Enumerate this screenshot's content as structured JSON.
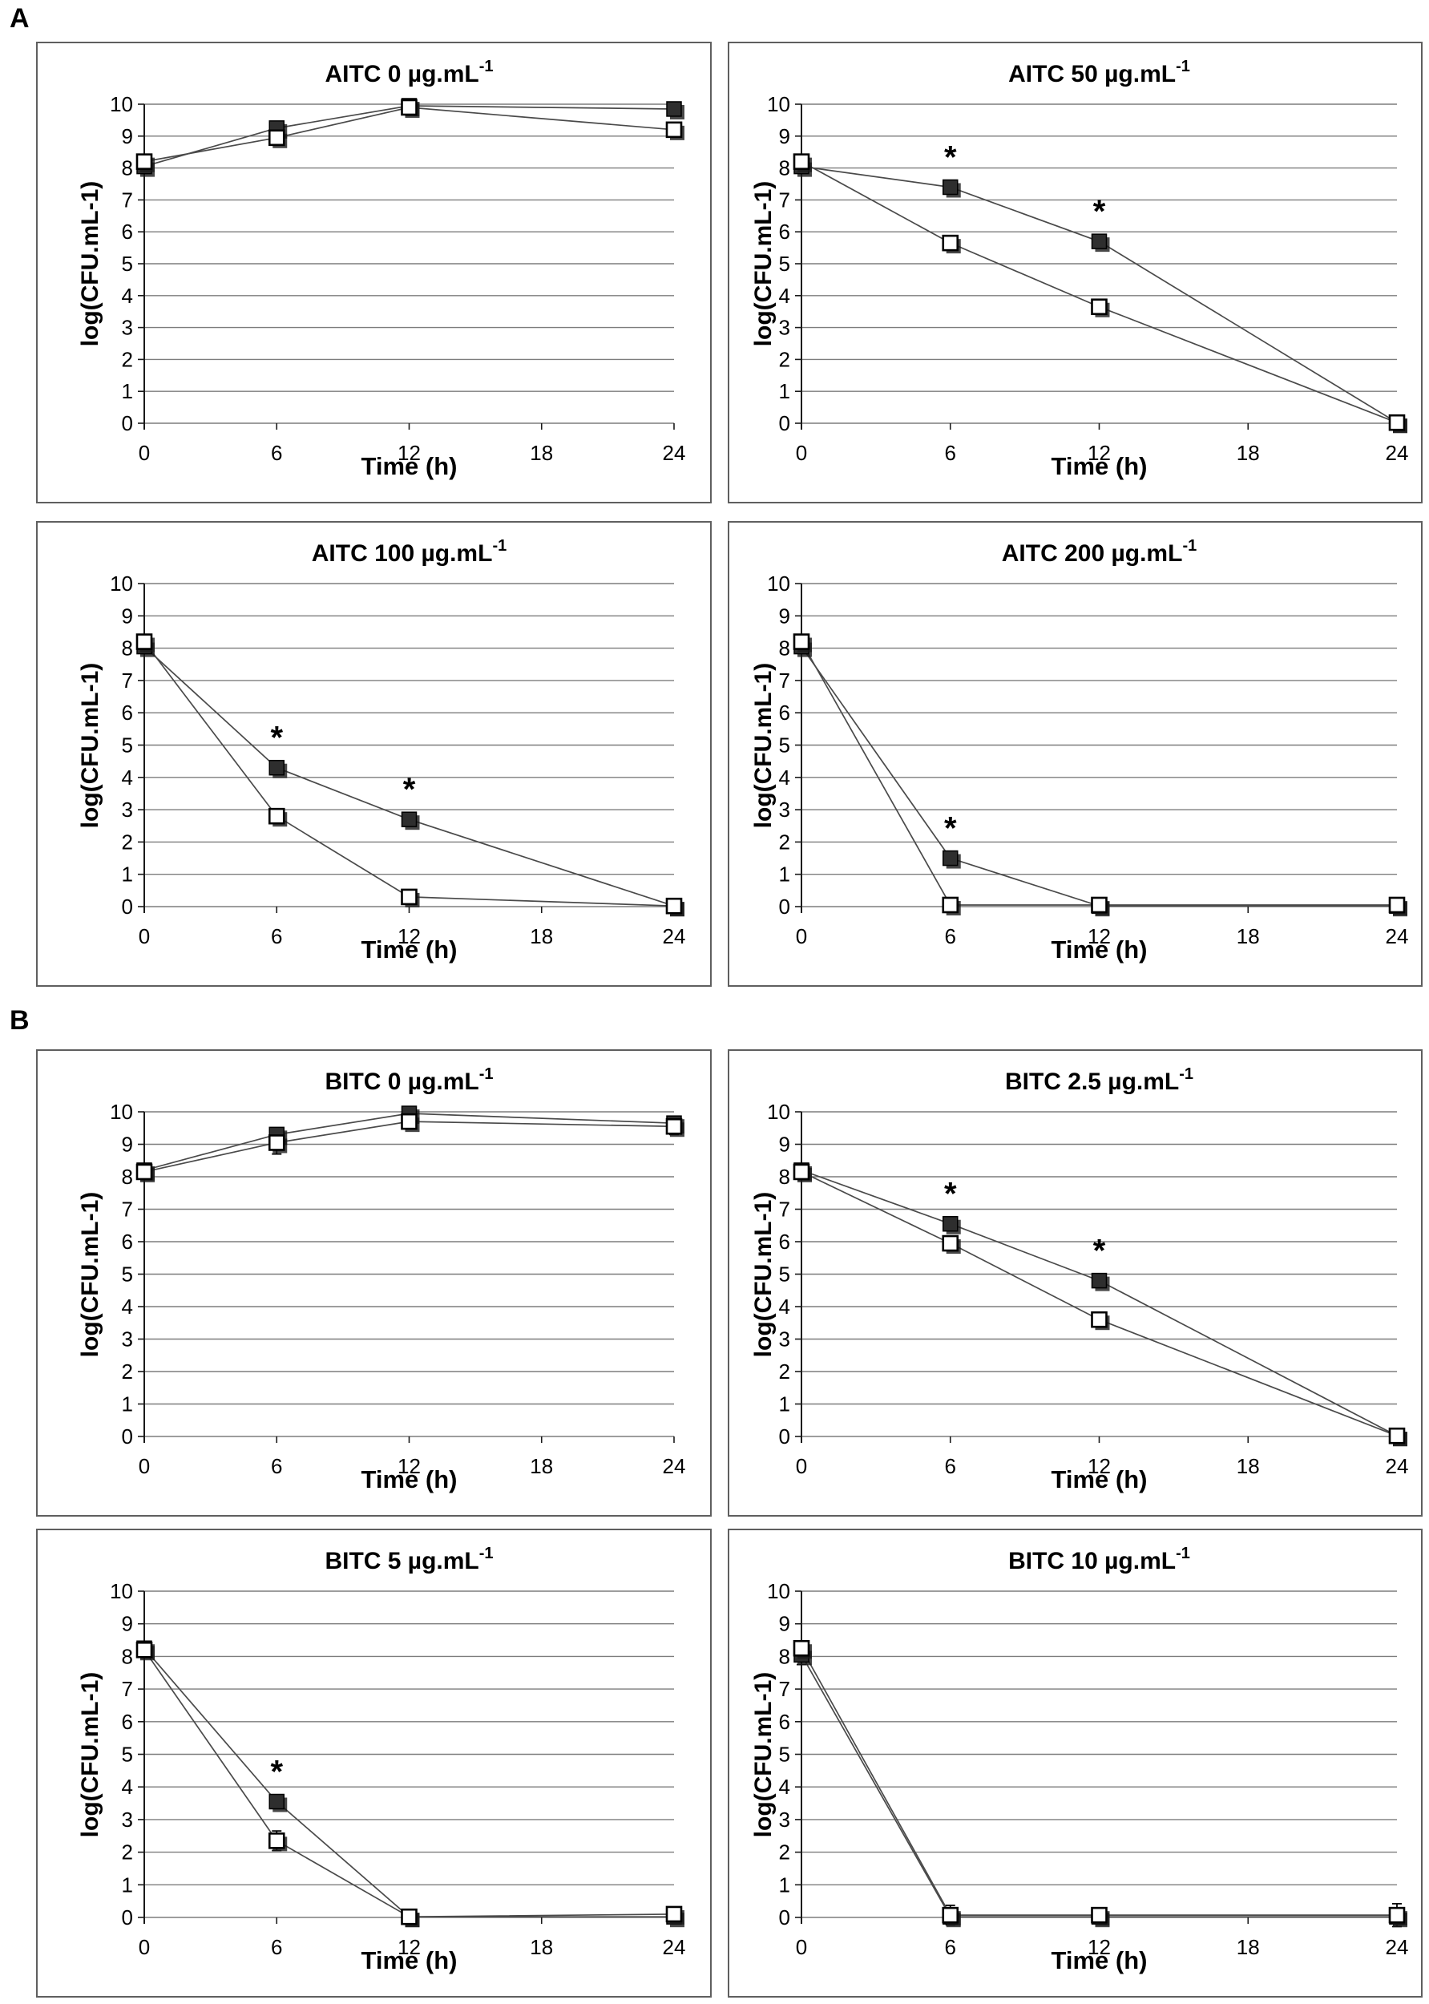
{
  "figure": {
    "panel_a_label": "A",
    "panel_b_label": "B",
    "significance_symbol": "*",
    "colors": {
      "grid": "#7d7d7d",
      "axis": "#1a1a1a",
      "series_line": "#4a4a4a",
      "filled_marker": "#2e2e2e",
      "open_marker_fill": "#ffffff",
      "marker_stroke": "#000000",
      "marker_shadow": "#1a1a1a",
      "box_border": "#5f5f5f"
    }
  },
  "chart_data": [
    {
      "type": "line",
      "panel": "A",
      "title": "AITC 0 µg.mL",
      "title_sup": "-1",
      "xlabel": "Time (h)",
      "ylabel": "log(CFU.mL-1)",
      "x": [
        0,
        6,
        12,
        24
      ],
      "xticks": [
        0,
        6,
        12,
        18,
        24
      ],
      "yticks": [
        0,
        1,
        2,
        3,
        4,
        5,
        6,
        7,
        8,
        9,
        10
      ],
      "xlim": [
        0,
        24
      ],
      "ylim": [
        0,
        10
      ],
      "grid": "horizontal",
      "legend": "none",
      "series": [
        {
          "name": "filled-square",
          "marker": "filled",
          "values": [
            8.05,
            9.25,
            9.95,
            9.85
          ],
          "err": [
            0,
            0,
            0,
            0
          ]
        },
        {
          "name": "open-square",
          "marker": "open",
          "values": [
            8.2,
            8.95,
            9.9,
            9.2
          ],
          "err": [
            0,
            0,
            0,
            0
          ]
        }
      ],
      "asterisk_x": []
    },
    {
      "type": "line",
      "panel": "A",
      "title": "AITC 50 µg.mL",
      "title_sup": "-1",
      "xlabel": "Time (h)",
      "ylabel": "log(CFU.mL-1)",
      "x": [
        0,
        6,
        12,
        24
      ],
      "xticks": [
        0,
        6,
        12,
        18,
        24
      ],
      "yticks": [
        0,
        1,
        2,
        3,
        4,
        5,
        6,
        7,
        8,
        9,
        10
      ],
      "xlim": [
        0,
        24
      ],
      "ylim": [
        0,
        10
      ],
      "grid": "horizontal",
      "legend": "none",
      "series": [
        {
          "name": "filled-square",
          "marker": "filled",
          "values": [
            8.05,
            7.4,
            5.7,
            0.02
          ],
          "err": [
            0,
            0,
            0,
            0
          ]
        },
        {
          "name": "open-square",
          "marker": "open",
          "values": [
            8.2,
            5.65,
            3.65,
            0.02
          ],
          "err": [
            0,
            0,
            0,
            0
          ]
        }
      ],
      "asterisk_x": [
        6,
        12
      ]
    },
    {
      "type": "line",
      "panel": "A",
      "title": "AITC 100 µg.mL",
      "title_sup": "-1",
      "xlabel": "Time (h)",
      "ylabel": "log(CFU.mL-1)",
      "x": [
        0,
        6,
        12,
        24
      ],
      "xticks": [
        0,
        6,
        12,
        18,
        24
      ],
      "yticks": [
        0,
        1,
        2,
        3,
        4,
        5,
        6,
        7,
        8,
        9,
        10
      ],
      "xlim": [
        0,
        24
      ],
      "ylim": [
        0,
        10
      ],
      "grid": "horizontal",
      "legend": "none",
      "series": [
        {
          "name": "filled-square",
          "marker": "filled",
          "values": [
            8.05,
            4.3,
            2.7,
            0.02
          ],
          "err": [
            0,
            0,
            0,
            0
          ]
        },
        {
          "name": "open-square",
          "marker": "open",
          "values": [
            8.2,
            2.8,
            0.3,
            0.02
          ],
          "err": [
            0,
            0,
            0,
            0
          ]
        }
      ],
      "asterisk_x": [
        6,
        12
      ]
    },
    {
      "type": "line",
      "panel": "A",
      "title": "AITC 200 µg.mL",
      "title_sup": "-1",
      "xlabel": "Time (h)",
      "ylabel": "log(CFU.mL-1)",
      "x": [
        0,
        6,
        12,
        24
      ],
      "xticks": [
        0,
        6,
        12,
        18,
        24
      ],
      "yticks": [
        0,
        1,
        2,
        3,
        4,
        5,
        6,
        7,
        8,
        9,
        10
      ],
      "xlim": [
        0,
        24
      ],
      "ylim": [
        0,
        10
      ],
      "grid": "horizontal",
      "legend": "none",
      "series": [
        {
          "name": "filled-square",
          "marker": "filled",
          "values": [
            8.05,
            1.5,
            0.02,
            0.02
          ],
          "err": [
            0,
            0,
            0,
            0
          ]
        },
        {
          "name": "open-square",
          "marker": "open",
          "values": [
            8.2,
            0.05,
            0.05,
            0.05
          ],
          "err": [
            0,
            0,
            0,
            0
          ]
        }
      ],
      "asterisk_x": [
        6
      ]
    },
    {
      "type": "line",
      "panel": "B",
      "title": "BITC 0 µg.mL",
      "title_sup": "-1",
      "xlabel": "Time (h)",
      "ylabel": "log(CFU.mL-1)",
      "x": [
        0,
        6,
        12,
        24
      ],
      "xticks": [
        0,
        6,
        12,
        18,
        24
      ],
      "yticks": [
        0,
        1,
        2,
        3,
        4,
        5,
        6,
        7,
        8,
        9,
        10
      ],
      "xlim": [
        0,
        24
      ],
      "ylim": [
        0,
        10
      ],
      "grid": "horizontal",
      "legend": "none",
      "series": [
        {
          "name": "filled-square",
          "marker": "filled",
          "values": [
            8.2,
            9.3,
            9.95,
            9.65
          ],
          "err": [
            0.15,
            0,
            0.15,
            0.2
          ]
        },
        {
          "name": "open-square",
          "marker": "open",
          "values": [
            8.15,
            9.05,
            9.7,
            9.55
          ],
          "err": [
            0.15,
            0.35,
            0,
            0.25
          ]
        }
      ],
      "asterisk_x": []
    },
    {
      "type": "line",
      "panel": "B",
      "title": "BITC 2.5 µg.mL",
      "title_sup": "-1",
      "xlabel": "Time (h)",
      "ylabel": "log(CFU.mL-1)",
      "x": [
        0,
        6,
        12,
        24
      ],
      "xticks": [
        0,
        6,
        12,
        18,
        24
      ],
      "yticks": [
        0,
        1,
        2,
        3,
        4,
        5,
        6,
        7,
        8,
        9,
        10
      ],
      "xlim": [
        0,
        24
      ],
      "ylim": [
        0,
        10
      ],
      "grid": "horizontal",
      "legend": "none",
      "series": [
        {
          "name": "filled-square",
          "marker": "filled",
          "values": [
            8.2,
            6.55,
            4.8,
            0.02
          ],
          "err": [
            0,
            0,
            0,
            0
          ]
        },
        {
          "name": "open-square",
          "marker": "open",
          "values": [
            8.15,
            5.95,
            3.6,
            0.02
          ],
          "err": [
            0,
            0,
            0,
            0
          ]
        }
      ],
      "asterisk_x": [
        6,
        12
      ]
    },
    {
      "type": "line",
      "panel": "B",
      "title": "BITC 5 µg.mL",
      "title_sup": "-1",
      "xlabel": "Time (h)",
      "ylabel": "log(CFU.mL-1)",
      "x": [
        0,
        6,
        12,
        24
      ],
      "xticks": [
        0,
        6,
        12,
        18,
        24
      ],
      "yticks": [
        0,
        1,
        2,
        3,
        4,
        5,
        6,
        7,
        8,
        9,
        10
      ],
      "xlim": [
        0,
        24
      ],
      "ylim": [
        0,
        10
      ],
      "grid": "horizontal",
      "legend": "none",
      "series": [
        {
          "name": "filled-square",
          "marker": "filled",
          "values": [
            8.25,
            3.55,
            0.02,
            0.02
          ],
          "err": [
            0,
            0,
            0,
            0
          ]
        },
        {
          "name": "open-square",
          "marker": "open",
          "values": [
            8.2,
            2.35,
            0.02,
            0.1
          ],
          "err": [
            0,
            0.3,
            0,
            0.15
          ]
        }
      ],
      "asterisk_x": [
        6
      ]
    },
    {
      "type": "line",
      "panel": "B",
      "title": "BITC 10 µg.mL",
      "title_sup": "-1",
      "xlabel": "Time (h)",
      "ylabel": "log(CFU.mL-1)",
      "x": [
        0,
        6,
        12,
        24
      ],
      "xticks": [
        0,
        6,
        12,
        18,
        24
      ],
      "yticks": [
        0,
        1,
        2,
        3,
        4,
        5,
        6,
        7,
        8,
        9,
        10
      ],
      "xlim": [
        0,
        24
      ],
      "ylim": [
        0,
        10
      ],
      "grid": "horizontal",
      "legend": "none",
      "series": [
        {
          "name": "filled-square",
          "marker": "filled",
          "values": [
            8.05,
            0.02,
            0.02,
            0.02
          ],
          "err": [
            0.3,
            0,
            0,
            0
          ]
        },
        {
          "name": "open-square",
          "marker": "open",
          "values": [
            8.25,
            0.07,
            0.07,
            0.07
          ],
          "err": [
            0,
            0.3,
            0,
            0.35
          ]
        }
      ],
      "asterisk_x": []
    }
  ]
}
